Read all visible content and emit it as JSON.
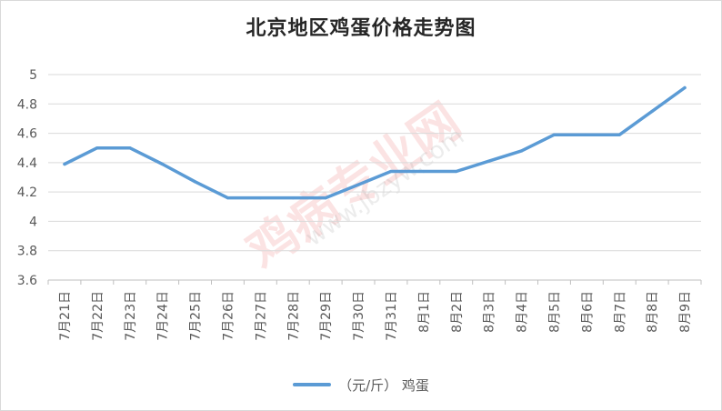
{
  "chart_data": {
    "type": "line",
    "title": "北京地区鸡蛋价格走势图",
    "categories": [
      "7月21日",
      "7月22日",
      "7月23日",
      "7月24日",
      "7月25日",
      "7月26日",
      "7月27日",
      "7月28日",
      "7月29日",
      "7月30日",
      "7月31日",
      "8月1日",
      "8月2日",
      "8月3日",
      "8月4日",
      "8月5日",
      "8月6日",
      "8月7日",
      "8月8日",
      "8月9日"
    ],
    "series": [
      {
        "name": "（元/斤） 鸡蛋",
        "color": "#5b9bd5",
        "values": [
          4.39,
          4.5,
          4.5,
          4.39,
          4.27,
          4.16,
          4.16,
          4.16,
          4.16,
          4.25,
          4.34,
          4.34,
          4.34,
          4.41,
          4.48,
          4.59,
          4.59,
          4.59,
          4.75,
          4.91
        ]
      }
    ],
    "ylim": [
      3.6,
      5
    ],
    "yticks": [
      "3.6",
      "3.8",
      "4",
      "4.2",
      "4.4",
      "4.6",
      "4.8",
      "5"
    ],
    "ytick_values": [
      3.6,
      3.8,
      4.0,
      4.2,
      4.4,
      4.6,
      4.8,
      5.0
    ],
    "grid": true,
    "legend": "bottom"
  },
  "watermark": {
    "main": "鸡病专业网",
    "sub": "www.jbzyw.com"
  }
}
